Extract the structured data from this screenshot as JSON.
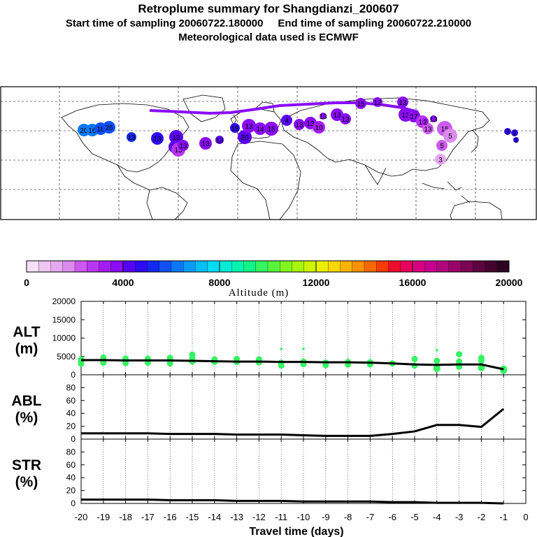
{
  "header": {
    "title": "Retroplume summary for Shangdianzi_200607",
    "sampling_line": "Start time of sampling 20060722.180000     End time of sampling 20060722.210000",
    "met_line": "Meteorological data used is ECMWF"
  },
  "colorbar": {
    "tick_labels": [
      "0",
      "4000",
      "8000",
      "12000",
      "16000",
      "20000"
    ],
    "label": "Altitude (m)",
    "colors": [
      "#f6e0f6",
      "#efc6ef",
      "#e6a8ee",
      "#dc8aec",
      "#cc5aee",
      "#b836f2",
      "#a31cf4",
      "#8a0cf8",
      "#5a00f4",
      "#2f0af4",
      "#1428f4",
      "#1050f4",
      "#0a78f6",
      "#089cf8",
      "#04c0f8",
      "#00dcf4",
      "#00ecd8",
      "#00f4b0",
      "#10f488",
      "#34f460",
      "#58f43c",
      "#80f420",
      "#a8f40c",
      "#ccf400",
      "#ecf000",
      "#f8d800",
      "#f8b400",
      "#f89000",
      "#f86800",
      "#f43c00",
      "#f00c2c",
      "#e8005c",
      "#d80080",
      "#c40090",
      "#b0087c",
      "#980468",
      "#7c0454",
      "#5e0440",
      "#44042e",
      "#2c0420"
    ]
  },
  "map_labels": [
    "20",
    "16",
    "18",
    "26",
    "13",
    "13",
    "13",
    "13",
    "13",
    "13",
    "13",
    "13",
    "15",
    "20",
    "13",
    "14",
    "15",
    "4",
    "13",
    "13",
    "10",
    "13",
    "13",
    "13",
    "15",
    "12",
    "13",
    "13",
    "17",
    "13",
    "13",
    "13",
    "15",
    "5",
    "5",
    "3",
    "2",
    "2",
    "2",
    "1"
  ],
  "chart_data": [
    {
      "type": "scatter",
      "name": "ALT",
      "ylabel": "ALT\n(m)",
      "ylabel_top": "ALT",
      "ylabel_bottom": "(m)",
      "ylim": [
        0,
        20000
      ],
      "yticks": [
        "0",
        "5000",
        "10000",
        "15000",
        "20000"
      ],
      "x": [
        -20,
        -19,
        -18,
        -17,
        -16,
        -15,
        -14,
        -13,
        -12,
        -11,
        -10,
        -9,
        -8,
        -7,
        -6,
        -5,
        -4,
        -3,
        -2,
        -1
      ],
      "line": [
        4000,
        4000,
        3900,
        3900,
        3900,
        3800,
        3700,
        3600,
        3600,
        3500,
        3500,
        3400,
        3400,
        3300,
        3100,
        2800,
        2700,
        2800,
        2800,
        1500
      ],
      "points": [
        {
          "x": -20,
          "y": 4200
        },
        {
          "x": -20,
          "y": 3500
        },
        {
          "x": -20,
          "y": 3000
        },
        {
          "x": -19,
          "y": 4700
        },
        {
          "x": -19,
          "y": 3900
        },
        {
          "x": -19,
          "y": 3300
        },
        {
          "x": -18,
          "y": 4400
        },
        {
          "x": -18,
          "y": 3700
        },
        {
          "x": -18,
          "y": 3200
        },
        {
          "x": -17,
          "y": 4400
        },
        {
          "x": -17,
          "y": 3300
        },
        {
          "x": -16,
          "y": 4600
        },
        {
          "x": -16,
          "y": 3700
        },
        {
          "x": -16,
          "y": 3100
        },
        {
          "x": -15,
          "y": 5500
        },
        {
          "x": -15,
          "y": 4500
        },
        {
          "x": -15,
          "y": 3600
        },
        {
          "x": -14,
          "y": 4200
        },
        {
          "x": -14,
          "y": 3500
        },
        {
          "x": -13,
          "y": 4300
        },
        {
          "x": -13,
          "y": 3500
        },
        {
          "x": -12,
          "y": 4200
        },
        {
          "x": -12,
          "y": 3400
        },
        {
          "x": -11,
          "y": 7000
        },
        {
          "x": -11,
          "y": 3300
        },
        {
          "x": -11,
          "y": 2500
        },
        {
          "x": -10,
          "y": 7100
        },
        {
          "x": -10,
          "y": 3600
        },
        {
          "x": -10,
          "y": 2900
        },
        {
          "x": -9,
          "y": 3300
        },
        {
          "x": -9,
          "y": 2600
        },
        {
          "x": -8,
          "y": 3500
        },
        {
          "x": -8,
          "y": 2800
        },
        {
          "x": -7,
          "y": 3400
        },
        {
          "x": -7,
          "y": 2800
        },
        {
          "x": -6,
          "y": 3100
        },
        {
          "x": -5,
          "y": 4300
        },
        {
          "x": -5,
          "y": 2500
        },
        {
          "x": -4,
          "y": 6700
        },
        {
          "x": -4,
          "y": 3800
        },
        {
          "x": -4,
          "y": 2400
        },
        {
          "x": -4,
          "y": 1700
        },
        {
          "x": -3,
          "y": 5600
        },
        {
          "x": -3,
          "y": 3600
        },
        {
          "x": -3,
          "y": 2200
        },
        {
          "x": -2,
          "y": 4600
        },
        {
          "x": -2,
          "y": 3800
        },
        {
          "x": -2,
          "y": 1900
        },
        {
          "x": -1,
          "y": 1600
        },
        {
          "x": -1,
          "y": 1200
        }
      ]
    },
    {
      "type": "line",
      "name": "ABL",
      "ylabel_top": "ABL",
      "ylabel_bottom": "(%)",
      "ylim": [
        0,
        100
      ],
      "yticks": [
        "0",
        "20",
        "40",
        "60",
        "80"
      ],
      "x": [
        -20,
        -19,
        -18,
        -17,
        -16,
        -15,
        -14,
        -13,
        -12,
        -11,
        -10,
        -9,
        -8,
        -7,
        -6,
        -5,
        -4,
        -3,
        -2,
        -1
      ],
      "values": [
        9,
        9,
        9,
        9,
        8,
        8,
        8,
        7,
        7,
        7,
        6,
        5,
        5,
        5,
        8,
        12,
        22,
        22,
        19,
        47
      ]
    },
    {
      "type": "line",
      "name": "STR",
      "ylabel_top": "STR",
      "ylabel_bottom": "(%)",
      "ylim": [
        0,
        100
      ],
      "yticks": [
        "0",
        "20",
        "40",
        "60",
        "80"
      ],
      "x": [
        -20,
        -19,
        -18,
        -17,
        -16,
        -15,
        -14,
        -13,
        -12,
        -11,
        -10,
        -9,
        -8,
        -7,
        -6,
        -5,
        -4,
        -3,
        -2,
        -1
      ],
      "values": [
        6,
        6,
        6,
        6,
        5,
        5,
        5,
        4,
        4,
        4,
        3,
        3,
        3,
        3,
        2,
        2,
        1,
        1,
        1,
        0
      ],
      "xlabel": "Travel time (days)",
      "xticks": [
        "-20",
        "-19",
        "-18",
        "-17",
        "-16",
        "-15",
        "-14",
        "-13",
        "-12",
        "-11",
        "-10",
        "-9",
        "-8",
        "-7",
        "-6",
        "-5",
        "-4",
        "-3",
        "-2",
        "-1",
        "0"
      ]
    }
  ]
}
